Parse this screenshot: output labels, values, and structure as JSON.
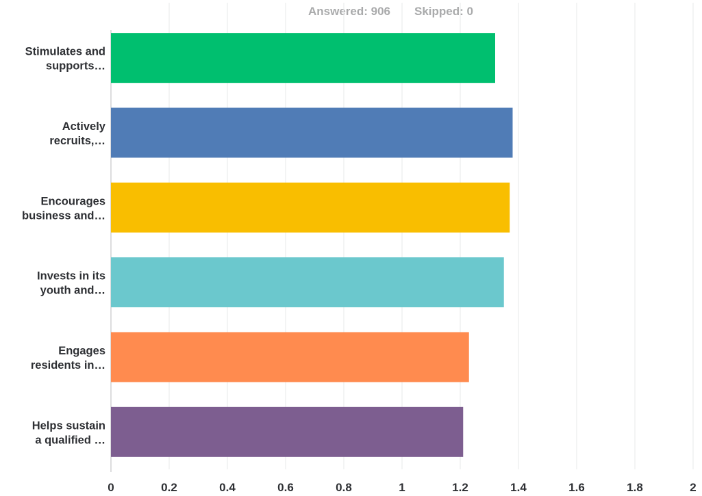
{
  "summary": {
    "answered_label": "Answered: 906",
    "skipped_label": "Skipped: 0"
  },
  "chart_data": {
    "type": "bar",
    "orientation": "horizontal",
    "title": "",
    "xlabel": "",
    "ylabel": "",
    "xlim": [
      0,
      2
    ],
    "x_ticks": [
      0,
      0.2,
      0.4,
      0.6,
      0.8,
      1,
      1.2,
      1.4,
      1.6,
      1.8,
      2
    ],
    "x_tick_labels": [
      "0",
      "0.2",
      "0.4",
      "0.6",
      "0.8",
      "1",
      "1.2",
      "1.4",
      "1.6",
      "1.8",
      "2"
    ],
    "grid": "vertical",
    "categories": [
      [
        "Stimulates and",
        "supports…"
      ],
      [
        "Actively",
        "recruits,…"
      ],
      [
        "Encourages",
        "business and…"
      ],
      [
        "Invests in its",
        "youth and…"
      ],
      [
        "Engages",
        "residents in…"
      ],
      [
        "Helps sustain",
        "a qualified …"
      ]
    ],
    "values": [
      1.32,
      1.38,
      1.37,
      1.35,
      1.23,
      1.21
    ],
    "colors": [
      "#00bf6f",
      "#507cb6",
      "#f9be00",
      "#6bc8cd",
      "#ff8b4f",
      "#7d5e90"
    ]
  }
}
